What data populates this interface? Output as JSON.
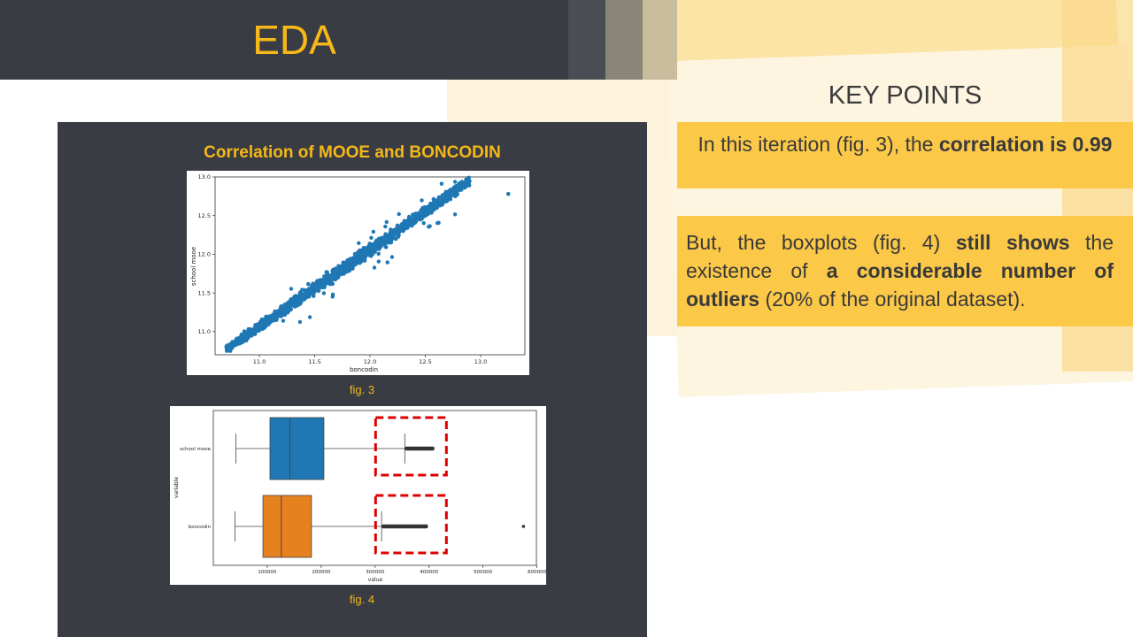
{
  "slide": {
    "title": "EDA",
    "key_points_title": "KEY POINTS",
    "point1": {
      "pre": "In this iteration (fig. 3), the ",
      "bold": "correlation is 0.99"
    },
    "point2": {
      "p1": "But, the boxplots (fig. 4) ",
      "b1": "still shows",
      "p2": " the existence of ",
      "b2": "a considerable number of outliers",
      "p3": " (20% of the original dataset)."
    },
    "fig3_caption": "fig. 3",
    "fig4_caption": "fig. 4"
  },
  "colors": {
    "title_bg": "#393c42",
    "accent": "#f7b819",
    "box_bg": "#fbc848",
    "scatter": "#1f77b4",
    "box_orange": "#e6811f",
    "highlight": "#dd0000"
  },
  "chart_data": [
    {
      "type": "scatter",
      "title": "Correlation of MOOE and BONCODIN",
      "xlabel": "boncodin",
      "ylabel": "school mooe",
      "xlim": [
        10.6,
        13.4
      ],
      "ylim": [
        10.7,
        13.0
      ],
      "xticks": [
        "11.0",
        "11.5",
        "12.0",
        "12.5",
        "13.0"
      ],
      "yticks": [
        "11.0",
        "11.5",
        "12.0",
        "12.5",
        "13.0"
      ],
      "trend": {
        "x_start": 10.7,
        "x_end": 12.9,
        "slope": 0.99,
        "correlation": 0.99
      },
      "outlier_point": {
        "x": 13.25,
        "y": 12.78
      }
    },
    {
      "type": "box",
      "xlabel": "value",
      "ylabel": "variable",
      "xlim": [
        0,
        600000
      ],
      "xticks": [
        "100000",
        "200000",
        "300000",
        "400000",
        "500000",
        "600000"
      ],
      "series": [
        {
          "name": "school mooe",
          "whisker_low": 42000,
          "q1": 105000,
          "median": 142000,
          "q3": 205000,
          "whisker_high": 355000,
          "outlier_range": [
            355000,
            410000
          ],
          "color": "#1f77b4"
        },
        {
          "name": "boncodin",
          "whisker_low": 40000,
          "q1": 92000,
          "median": 126000,
          "q3": 182000,
          "whisker_high": 312000,
          "outlier_range": [
            312000,
            398000
          ],
          "far_outlier": 575000,
          "color": "#e6811f"
        }
      ]
    }
  ]
}
